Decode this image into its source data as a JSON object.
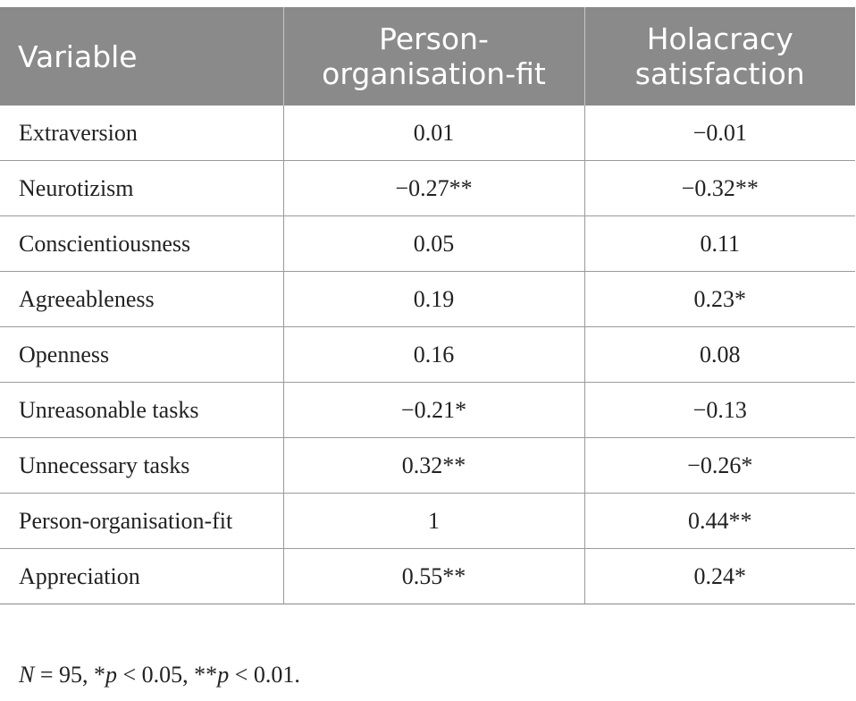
{
  "table": {
    "headers": {
      "variable": "Variable",
      "col1_line1": "Person-",
      "col1_line2": "organisation-fit",
      "col2_line1": "Holacracy",
      "col2_line2": "satisfaction"
    },
    "rows": [
      {
        "variable": "Extraversion",
        "pof": "0.01",
        "holacracy": "−0.01"
      },
      {
        "variable": "Neurotizism",
        "pof": "−0.27**",
        "holacracy": "−0.32**"
      },
      {
        "variable": "Conscientiousness",
        "pof": "0.05",
        "holacracy": "0.11"
      },
      {
        "variable": "Agreeableness",
        "pof": "0.19",
        "holacracy": "0.23*"
      },
      {
        "variable": "Openness",
        "pof": "0.16",
        "holacracy": "0.08"
      },
      {
        "variable": "Unreasonable tasks",
        "pof": "−0.21*",
        "holacracy": "−0.13"
      },
      {
        "variable": "Unnecessary tasks",
        "pof": "0.32**",
        "holacracy": "−0.26*"
      },
      {
        "variable": "Person-organisation-fit",
        "pof": "1",
        "holacracy": "0.44**"
      },
      {
        "variable": "Appreciation",
        "pof": "0.55**",
        "holacracy": "0.24*"
      }
    ]
  },
  "note": {
    "n": "N",
    "n_value": " = 95, *",
    "p1": "p",
    "p1_value": " < 0.05, **",
    "p2": "p",
    "p2_value": " < 0.01."
  }
}
